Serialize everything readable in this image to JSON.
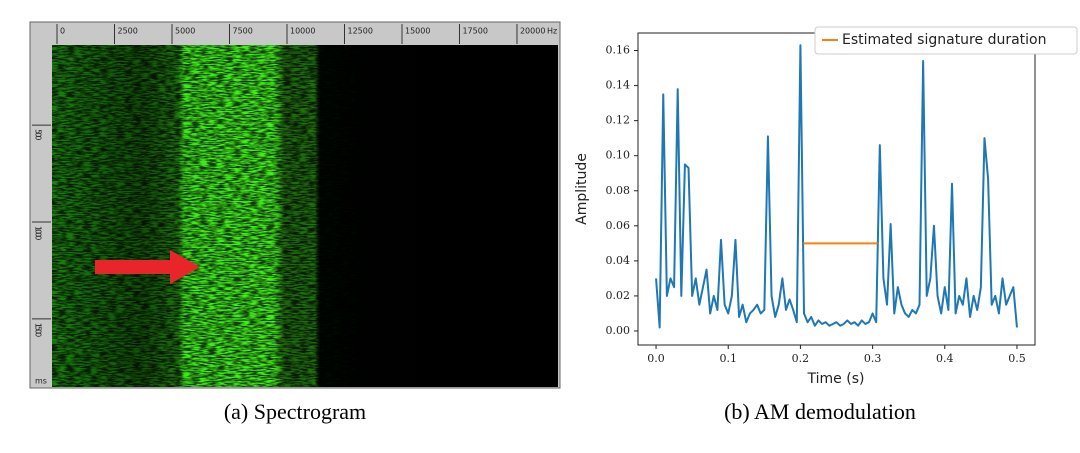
{
  "chart_data": [
    {
      "type": "spectrogram",
      "caption": "(a) Spectrogram",
      "xlim": [
        0,
        21740
      ],
      "xticks": [
        0,
        2500,
        5000,
        7500,
        10000,
        12500,
        15000,
        17500,
        20000
      ],
      "x_unit": "Hz",
      "ylim": [
        50,
        1790
      ],
      "yticks": [
        500,
        1000,
        1500
      ],
      "y_unit": "ms"
    },
    {
      "type": "line",
      "caption": "(b) AM demodulation",
      "xlabel": "Time (s)",
      "ylabel": "Amplitude",
      "xlim": [
        -0.025,
        0.525
      ],
      "xticks": [
        {
          "value": 0,
          "label": "0.0"
        },
        0.1,
        0.2,
        0.3,
        0.4,
        0.5
      ],
      "ylim": [
        -0.008,
        0.17
      ],
      "yticks": [
        {
          "value": 0,
          "label": "0.00"
        },
        0.02,
        0.04,
        0.06,
        0.08,
        {
          "value": 0.1,
          "label": "0.10"
        },
        0.12,
        0.14,
        0.16
      ],
      "legend": "upper right",
      "series": [
        {
          "color": "#1f77b4",
          "x": [
            0,
            0.005,
            0.01,
            0.015,
            0.02,
            0.025,
            0.03,
            0.035,
            0.04,
            0.045,
            0.05,
            0.055,
            0.06,
            0.065,
            0.07,
            0.075,
            0.08,
            0.085,
            0.09,
            0.095,
            0.1,
            0.105,
            0.11,
            0.115,
            0.12,
            0.125,
            0.13,
            0.135,
            0.14,
            0.145,
            0.15,
            0.155,
            0.16,
            0.165,
            0.17,
            0.175,
            0.18,
            0.185,
            0.19,
            0.195,
            0.2,
            0.205,
            0.21,
            0.215,
            0.22,
            0.225,
            0.23,
            0.235,
            0.24,
            0.245,
            0.25,
            0.255,
            0.26,
            0.265,
            0.27,
            0.275,
            0.28,
            0.285,
            0.29,
            0.295,
            0.3,
            0.305,
            0.31,
            0.315,
            0.32,
            0.325,
            0.33,
            0.335,
            0.34,
            0.345,
            0.35,
            0.355,
            0.36,
            0.365,
            0.37,
            0.375,
            0.38,
            0.385,
            0.39,
            0.395,
            0.4,
            0.405,
            0.41,
            0.415,
            0.42,
            0.425,
            0.43,
            0.435,
            0.44,
            0.445,
            0.45,
            0.455,
            0.46,
            0.465,
            0.47,
            0.475,
            0.48,
            0.485,
            0.49,
            0.495,
            0.5
          ],
          "values": [
            0.03,
            0.002,
            0.135,
            0.02,
            0.03,
            0.025,
            0.138,
            0.02,
            0.095,
            0.093,
            0.02,
            0.03,
            0.015,
            0.025,
            0.035,
            0.01,
            0.02,
            0.012,
            0.052,
            0.015,
            0.01,
            0.02,
            0.052,
            0.008,
            0.015,
            0.005,
            0.01,
            0.012,
            0.015,
            0.01,
            0.012,
            0.111,
            0.02,
            0.008,
            0.015,
            0.03,
            0.012,
            0.018,
            0.012,
            0.005,
            0.163,
            0.01,
            0.005,
            0.008,
            0.003,
            0.006,
            0.004,
            0.005,
            0.003,
            0.004,
            0.005,
            0.003,
            0.004,
            0.006,
            0.004,
            0.005,
            0.003,
            0.006,
            0.004,
            0.005,
            0.01,
            0.005,
            0.106,
            0.03,
            0.015,
            0.061,
            0.01,
            0.025,
            0.015,
            0.01,
            0.008,
            0.012,
            0.01,
            0.015,
            0.154,
            0.02,
            0.03,
            0.06,
            0.02,
            0.01,
            0.025,
            0.012,
            0.084,
            0.01,
            0.02,
            0.015,
            0.03,
            0.008,
            0.02,
            0.012,
            0.025,
            0.11,
            0.087,
            0.015,
            0.02,
            0.01,
            0.03,
            0.015,
            0.02,
            0.025,
            0.002
          ]
        },
        {
          "name": "Estimated signature duration",
          "color": "#ff7f0e",
          "x": [
            0.204,
            0.307
          ],
          "values": [
            0.05,
            0.05
          ]
        }
      ]
    }
  ]
}
